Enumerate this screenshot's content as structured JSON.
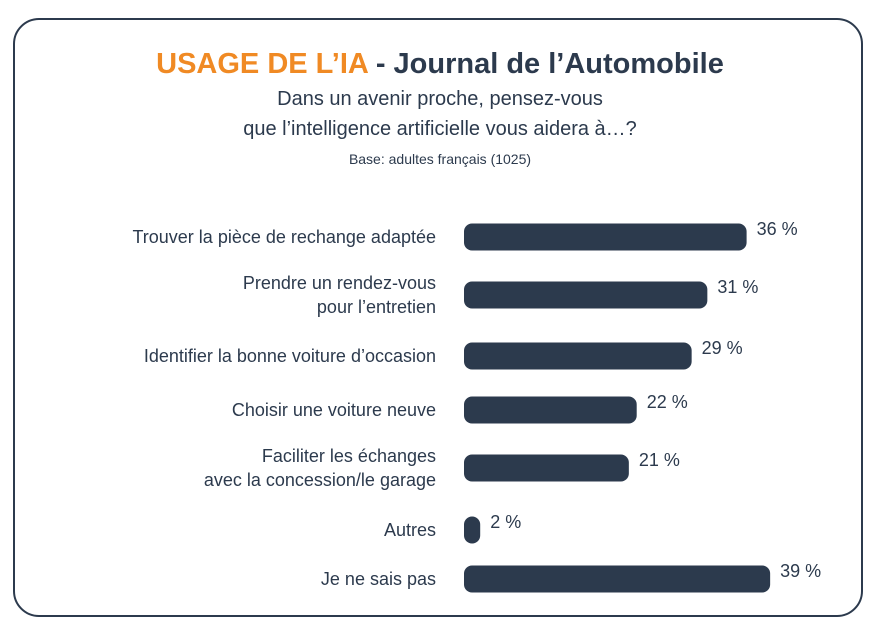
{
  "header": {
    "title_accent": "USAGE DE L’IA",
    "title_rest": " - Journal de l’Automobile",
    "subtitle_line1": "Dans un avenir proche, pensez-vous",
    "subtitle_line2": "que l’intelligence artificielle vous aidera à…?",
    "base": "Base: adultes français (1025)"
  },
  "colors": {
    "accent": "#f08a24",
    "bar": "#2c3a4d",
    "text": "#2c3a4d",
    "border": "#2c3a4d"
  },
  "chart_data": {
    "type": "bar",
    "orientation": "horizontal",
    "categories": [
      [
        "Trouver la pièce de rechange adaptée"
      ],
      [
        "Prendre un rendez-vous",
        "pour l’entretien"
      ],
      [
        "Identifier la bonne voiture d’occasion"
      ],
      [
        "Choisir une voiture neuve"
      ],
      [
        "Faciliter les échanges",
        "avec la concession/le garage"
      ],
      [
        "Autres"
      ],
      [
        "Je ne sais pas"
      ]
    ],
    "values": [
      36,
      31,
      29,
      22,
      21,
      2,
      39
    ],
    "value_labels": [
      "36 %",
      "31 %",
      "29 %",
      "22 %",
      "21 %",
      "2 %",
      "39 %"
    ],
    "unit": "%",
    "grid": false
  }
}
